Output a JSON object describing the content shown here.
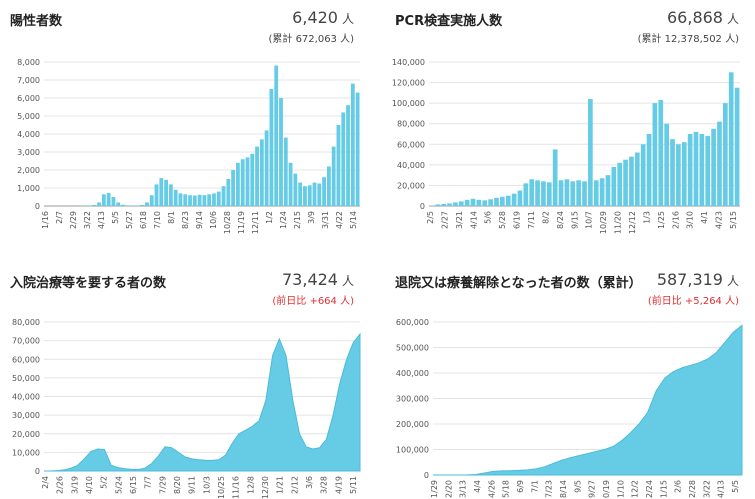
{
  "panels": [
    {
      "title": "陽性者数",
      "value": "6,420",
      "unit": "人",
      "subtext": "(累計 672,063 人)",
      "sub_color": "#444444",
      "color": "#66cce6",
      "chart_data": {
        "type": "bar",
        "ylim": [
          0,
          8000
        ],
        "yticks": [
          "0",
          "1,000",
          "2,000",
          "3,000",
          "4,000",
          "5,000",
          "6,000",
          "7,000",
          "8,000"
        ],
        "xticks": [
          "1/16",
          "2/7",
          "2/29",
          "3/22",
          "4/13",
          "5/5",
          "5/27",
          "6/18",
          "7/10",
          "8/1",
          "8/23",
          "9/14",
          "10/6",
          "10/28",
          "11/19",
          "12/11",
          "1/2",
          "1/24",
          "2/15",
          "3/9",
          "3/31",
          "4/22",
          "5/14"
        ],
        "values": [
          0,
          0,
          0,
          0,
          0,
          0,
          0,
          10,
          20,
          30,
          60,
          200,
          650,
          720,
          500,
          200,
          70,
          30,
          20,
          30,
          60,
          200,
          600,
          1200,
          1550,
          1450,
          1200,
          900,
          700,
          650,
          600,
          580,
          620,
          600,
          650,
          700,
          800,
          1100,
          1500,
          2000,
          2400,
          2600,
          2700,
          2900,
          3300,
          3700,
          4200,
          6500,
          7800,
          6000,
          3800,
          2400,
          1800,
          1300,
          1100,
          1150,
          1300,
          1250,
          1600,
          2200,
          3300,
          4500,
          5200,
          5600,
          6800,
          6300
        ]
      }
    },
    {
      "title": "PCR検査実施人数",
      "value": "66,868",
      "unit": "人",
      "subtext": "(累計 12,378,502 人)",
      "sub_color": "#444444",
      "color": "#66cce6",
      "chart_data": {
        "type": "bar",
        "ylim": [
          0,
          140000
        ],
        "yticks": [
          "0",
          "20,000",
          "40,000",
          "60,000",
          "80,000",
          "100,000",
          "120,000",
          "140,000"
        ],
        "xticks": [
          "2/5",
          "2/27",
          "3/21",
          "4/14",
          "5/6",
          "5/28",
          "6/19",
          "7/11",
          "8/2",
          "8/24",
          "9/15",
          "10/7",
          "10/29",
          "11/20",
          "12/12",
          "1/3",
          "1/25",
          "2/16",
          "3/10",
          "4/1",
          "4/23",
          "5/15"
        ],
        "values": [
          500,
          1500,
          2000,
          2500,
          3500,
          4500,
          6000,
          7000,
          6000,
          5500,
          6500,
          8000,
          9000,
          10000,
          12000,
          15000,
          22000,
          26000,
          25000,
          24000,
          23000,
          55000,
          25000,
          26000,
          24000,
          25000,
          24000,
          104000,
          25000,
          27000,
          30000,
          38000,
          42000,
          45000,
          48000,
          52000,
          60000,
          70000,
          100000,
          103000,
          80000,
          65000,
          60000,
          62000,
          70000,
          72000,
          70000,
          68000,
          75000,
          82000,
          100000,
          130000,
          115000
        ]
      }
    },
    {
      "title": "入院治療等を要する者の数",
      "value": "73,424",
      "unit": "人",
      "subtext": "(前日比 +664 人)",
      "sub_color": "#e03030",
      "color": "#66cce6",
      "chart_data": {
        "type": "area",
        "ylim": [
          0,
          80000
        ],
        "yticks": [
          "0",
          "10,000",
          "20,000",
          "30,000",
          "40,000",
          "50,000",
          "60,000",
          "70,000",
          "80,000"
        ],
        "xticks": [
          "2/4",
          "2/26",
          "3/19",
          "4/10",
          "5/2",
          "5/24",
          "6/15",
          "7/7",
          "7/29",
          "8/20",
          "9/11",
          "10/3",
          "10/25",
          "11/16",
          "12/8",
          "12/30",
          "1/21",
          "2/12",
          "3/6",
          "3/28",
          "4/19",
          "5/11"
        ],
        "values": [
          0,
          50,
          200,
          600,
          1500,
          3000,
          6500,
          10500,
          11800,
          11500,
          3000,
          1800,
          1200,
          900,
          800,
          1500,
          4000,
          8000,
          13000,
          12500,
          10000,
          7500,
          6500,
          6000,
          5800,
          5700,
          6000,
          8500,
          15000,
          20000,
          22000,
          24000,
          27000,
          38000,
          62000,
          71000,
          62000,
          38000,
          20000,
          13000,
          11800,
          12500,
          17000,
          30000,
          47000,
          60000,
          69000,
          73500
        ]
      }
    },
    {
      "title": "退院又は療養解除となった者の数（累計）",
      "value": "587,319",
      "unit": "人",
      "subtext": "(前日比 +5,264 人)",
      "sub_color": "#e03030",
      "color": "#66cce6",
      "chart_data": {
        "type": "area",
        "ylim": [
          0,
          600000
        ],
        "yticks": [
          "0",
          "100,000",
          "200,000",
          "300,000",
          "400,000",
          "500,000",
          "600,000"
        ],
        "xticks": [
          "1/29",
          "2/20",
          "3/13",
          "4/4",
          "4/26",
          "5/18",
          "6/9",
          "7/1",
          "7/23",
          "8/14",
          "9/5",
          "9/27",
          "10/19",
          "11/10",
          "12/2",
          "12/24",
          "1/15",
          "2/6",
          "2/28",
          "3/22",
          "4/13",
          "5/5"
        ],
        "values": [
          0,
          0,
          0,
          0,
          500,
          2000,
          8000,
          14000,
          16000,
          17000,
          18000,
          20000,
          24000,
          32000,
          45000,
          58000,
          68000,
          76000,
          84000,
          92000,
          100000,
          112000,
          135000,
          165000,
          200000,
          245000,
          330000,
          380000,
          405000,
          420000,
          430000,
          440000,
          455000,
          480000,
          520000,
          560000,
          587000
        ]
      }
    }
  ]
}
